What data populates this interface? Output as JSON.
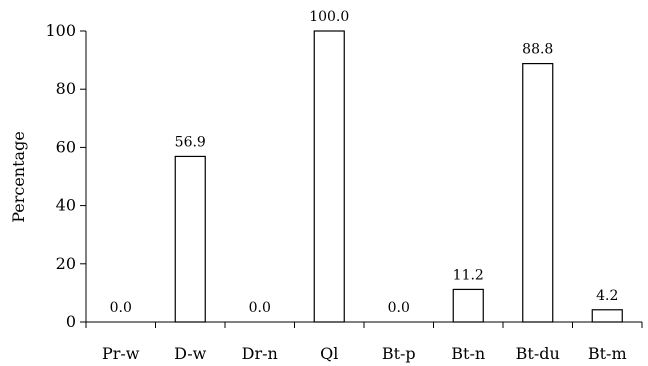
{
  "chart_data": {
    "type": "bar",
    "title": "",
    "xlabel": "",
    "ylabel": "Percentage",
    "ylim": [
      0,
      100
    ],
    "yticks": [
      0,
      20,
      40,
      60,
      80,
      100
    ],
    "categories": [
      "Pr-w",
      "D-w",
      "Dr-n",
      "Ql",
      "Bt-p",
      "Bt-n",
      "Bt-du",
      "Bt-m"
    ],
    "values": [
      0.0,
      56.9,
      0.0,
      100.0,
      0.0,
      11.2,
      88.8,
      4.2
    ],
    "data_labels": [
      "0.0",
      "56.9",
      "0.0",
      "100.0",
      "0.0",
      "11.2",
      "88.8",
      "4.2"
    ],
    "grid": false,
    "legend": "none",
    "bar_fill": "#ffffff",
    "bar_stroke": "#000000"
  }
}
